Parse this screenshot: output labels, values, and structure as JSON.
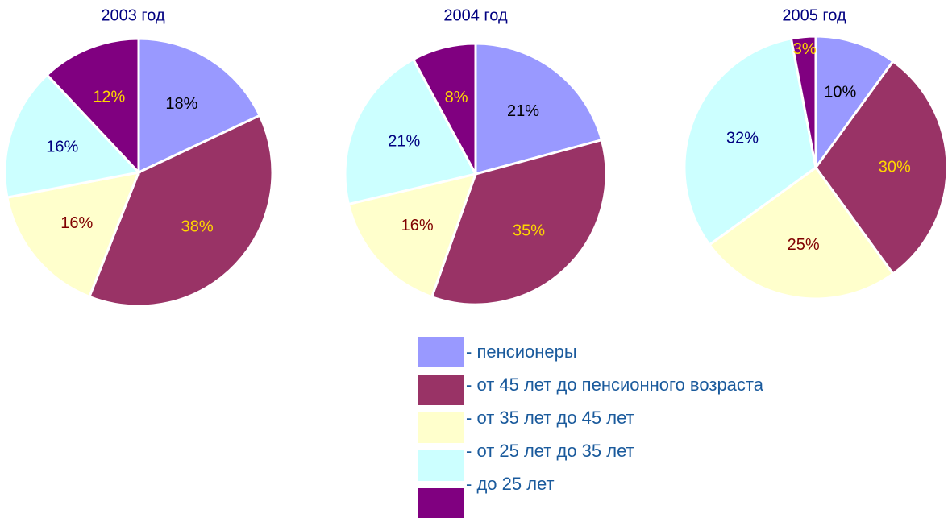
{
  "chart_data": [
    {
      "type": "pie",
      "title": "2003 год",
      "values": [
        18,
        38,
        16,
        16,
        12
      ],
      "value_labels": [
        "18%",
        "38%",
        "16%",
        "16%",
        "12%"
      ]
    },
    {
      "type": "pie",
      "title": "2004 год",
      "values": [
        21,
        35,
        16,
        21,
        8
      ],
      "value_labels": [
        "21%",
        "35%",
        "16%",
        "21%",
        "8%"
      ]
    },
    {
      "type": "pie",
      "title": "2005 год",
      "values": [
        10,
        30,
        25,
        32,
        3
      ],
      "value_labels": [
        "10%",
        "30%",
        "25%",
        "32%",
        "3%"
      ]
    }
  ],
  "legend": {
    "labels": [
      "- пенсионеры",
      "- от 45 лет до пенсионного возраста",
      "- от 35 лет до 45 лет",
      "- от 25 лет до 35 лет",
      "- до 25 лет"
    ],
    "colors": [
      "#9999ff",
      "#993366",
      "#ffffcc",
      "#ccffff",
      "#800080"
    ],
    "label_colors": [
      "#000000",
      "#ffd700",
      "#800000",
      "#000080",
      "#ffd700"
    ]
  }
}
